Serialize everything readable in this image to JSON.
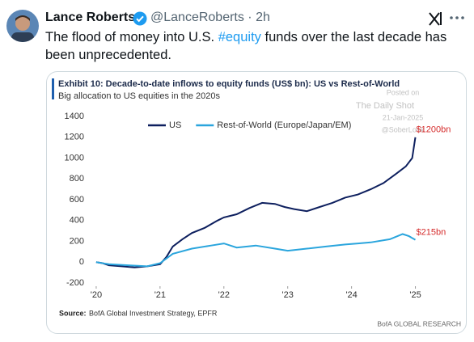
{
  "tweet": {
    "author": "Lance Roberts",
    "meta": "@LanceRoberts · 2h",
    "text_before": "The flood of money into U.S. ",
    "hashtag": "#equity",
    "text_after": " funds over the last decade has been unprecedented."
  },
  "chart_data": {
    "type": "line",
    "title": "Exhibit 10: Decade-to-date inflows to equity funds (US$ bn): US vs Rest-of-World",
    "subtitle": "Big allocation to US equities in the 2020s",
    "watermark": [
      "Posted on",
      "The Daily Shot",
      "21-Jan-2025",
      "@SoberLook"
    ],
    "source_label": "Source:",
    "source": "BofA Global Investment Strategy, EPFR",
    "brand": "BofA GLOBAL RESEARCH",
    "xlim": [
      2019.95,
      2025.5
    ],
    "ylim": [
      -200,
      1400
    ],
    "xticks": [
      {
        "value": 2020,
        "label": "'20"
      },
      {
        "value": 2021,
        "label": "'21"
      },
      {
        "value": 2022,
        "label": "'22"
      },
      {
        "value": 2023,
        "label": "'23"
      },
      {
        "value": 2024,
        "label": "'24"
      },
      {
        "value": 2025,
        "label": "'25"
      }
    ],
    "yticks": [
      -200,
      0,
      200,
      400,
      600,
      800,
      1000,
      1200,
      1400
    ],
    "grid": false,
    "series": [
      {
        "name": "US",
        "color": "#0d1f5e",
        "end_label": "$1200bn",
        "x": [
          2020.0,
          2020.1,
          2020.2,
          2020.4,
          2020.6,
          2020.8,
          2021.0,
          2021.1,
          2021.2,
          2021.35,
          2021.5,
          2021.7,
          2021.9,
          2022.0,
          2022.2,
          2022.4,
          2022.6,
          2022.8,
          2022.95,
          2023.1,
          2023.3,
          2023.5,
          2023.7,
          2023.9,
          2024.1,
          2024.3,
          2024.5,
          2024.7,
          2024.85,
          2024.95,
          2025.0
        ],
        "values": [
          0,
          -10,
          -30,
          -40,
          -50,
          -40,
          -20,
          50,
          150,
          220,
          280,
          330,
          400,
          430,
          460,
          520,
          570,
          560,
          530,
          510,
          490,
          530,
          570,
          620,
          650,
          700,
          760,
          850,
          920,
          1000,
          1200
        ]
      },
      {
        "name": "Rest-of-World (Europe/Japan/EM)",
        "color": "#2aa5dd",
        "end_label": "$215bn",
        "x": [
          2020.0,
          2020.2,
          2020.5,
          2020.8,
          2021.0,
          2021.2,
          2021.5,
          2021.8,
          2022.0,
          2022.2,
          2022.5,
          2022.8,
          2023.0,
          2023.3,
          2023.6,
          2023.9,
          2024.1,
          2024.3,
          2024.6,
          2024.8,
          2024.9,
          2025.0
        ],
        "values": [
          0,
          -20,
          -30,
          -40,
          -10,
          80,
          130,
          160,
          180,
          140,
          160,
          130,
          110,
          130,
          150,
          170,
          180,
          190,
          220,
          270,
          250,
          215
        ]
      }
    ]
  }
}
